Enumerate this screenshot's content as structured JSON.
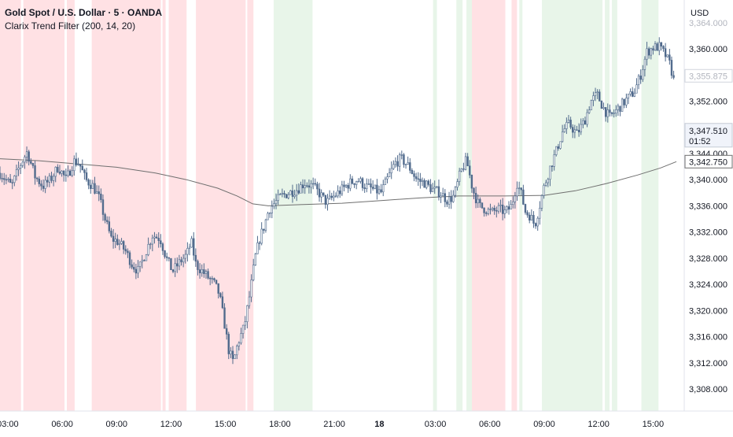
{
  "header": {
    "symbol_title": "Gold Spot / U.S. Dollar · 5 · OANDA",
    "indicator_label": "Clarix Trend Filter (200, 14, 20)"
  },
  "colors": {
    "bull_zone": "#e8f5e9",
    "bear_zone": "#ffe1e4",
    "candle": "#506a8c",
    "ma_line": "#6f6f6f",
    "axis_text": "#131722"
  },
  "chart_data": {
    "type": "candlestick",
    "title": "Gold Spot / U.S. Dollar · 5 · OANDA",
    "indicator": "Clarix Trend Filter (200, 14, 20)",
    "currency_label": "USD",
    "y_range": [
      3304.5,
      3366
    ],
    "y_ticks": [
      {
        "value": 3308,
        "label": "3,308.000"
      },
      {
        "value": 3312,
        "label": "3,312.000"
      },
      {
        "value": 3316,
        "label": "3,316.000"
      },
      {
        "value": 3320,
        "label": "3,320.000"
      },
      {
        "value": 3324,
        "label": "3,324.000"
      },
      {
        "value": 3328,
        "label": "3,328.000"
      },
      {
        "value": 3332,
        "label": "3,332.000"
      },
      {
        "value": 3336,
        "label": "3,336.000"
      },
      {
        "value": 3340,
        "label": "3,340.000"
      },
      {
        "value": 3344,
        "label": "3,344.000"
      },
      {
        "value": 3352,
        "label": "3,352.000"
      },
      {
        "value": 3360,
        "label": "3,360.000"
      }
    ],
    "y_ticks_partial": [
      {
        "value": 3364,
        "label": "3,364.000"
      }
    ],
    "x_range": [
      -10,
      860
    ],
    "x_ticks": [
      {
        "x": 0,
        "label": "03:00",
        "bold": false
      },
      {
        "x": 70,
        "label": "06:00",
        "bold": false
      },
      {
        "x": 140,
        "label": "09:00",
        "bold": false
      },
      {
        "x": 210,
        "label": "12:00",
        "bold": false
      },
      {
        "x": 280,
        "label": "15:00",
        "bold": false
      },
      {
        "x": 350,
        "label": "18:00",
        "bold": false
      },
      {
        "x": 420,
        "label": "21:00",
        "bold": false
      },
      {
        "x": 478,
        "label": "18",
        "bold": true
      },
      {
        "x": 550,
        "label": "03:00",
        "bold": false
      },
      {
        "x": 620,
        "label": "06:00",
        "bold": false
      },
      {
        "x": 690,
        "label": "09:00",
        "bold": false
      },
      {
        "x": 760,
        "label": "12:00",
        "bold": false
      },
      {
        "x": 830,
        "label": "15:00",
        "bold": false
      }
    ],
    "price_labels": [
      {
        "value": 3355.875,
        "label": "3,355.875",
        "style": "ghost"
      },
      {
        "value": 3347.51,
        "label": "3,347.510",
        "sub": "01:52",
        "style": "current"
      },
      {
        "value": 3342.75,
        "label": "3,342.750",
        "style": "ma"
      }
    ],
    "zones": [
      {
        "from": -10,
        "to": 17,
        "trend": "bear"
      },
      {
        "from": 20,
        "to": 73,
        "trend": "bear"
      },
      {
        "from": 76,
        "to": 86,
        "trend": "bear"
      },
      {
        "from": 108,
        "to": 197,
        "trend": "bear"
      },
      {
        "from": 199,
        "to": 203,
        "trend": "bear"
      },
      {
        "from": 207,
        "to": 230,
        "trend": "bear"
      },
      {
        "from": 242,
        "to": 306,
        "trend": "bear"
      },
      {
        "from": 308,
        "to": 316,
        "trend": "bear"
      },
      {
        "from": 342,
        "to": 392,
        "trend": "bull"
      },
      {
        "from": 547,
        "to": 552,
        "trend": "bull"
      },
      {
        "from": 577,
        "to": 585,
        "trend": "bull"
      },
      {
        "from": 590,
        "to": 597,
        "trend": "bull"
      },
      {
        "from": 597,
        "to": 640,
        "trend": "bear"
      },
      {
        "from": 648,
        "to": 655,
        "trend": "bear"
      },
      {
        "from": 658,
        "to": 662,
        "trend": "bull"
      },
      {
        "from": 687,
        "to": 765,
        "trend": "bull"
      },
      {
        "from": 768,
        "to": 774,
        "trend": "bull"
      },
      {
        "from": 777,
        "to": 784,
        "trend": "bull"
      },
      {
        "from": 815,
        "to": 837,
        "trend": "bull"
      }
    ],
    "ma_line": [
      {
        "x": -10,
        "y": 3343.2
      },
      {
        "x": 40,
        "y": 3342.9
      },
      {
        "x": 90,
        "y": 3342.4
      },
      {
        "x": 140,
        "y": 3341.9
      },
      {
        "x": 190,
        "y": 3341.0
      },
      {
        "x": 230,
        "y": 3340.0
      },
      {
        "x": 270,
        "y": 3338.7
      },
      {
        "x": 295,
        "y": 3337.5
      },
      {
        "x": 315,
        "y": 3336.3
      },
      {
        "x": 335,
        "y": 3336.0
      },
      {
        "x": 380,
        "y": 3336.2
      },
      {
        "x": 430,
        "y": 3336.4
      },
      {
        "x": 480,
        "y": 3336.8
      },
      {
        "x": 530,
        "y": 3337.2
      },
      {
        "x": 580,
        "y": 3337.5
      },
      {
        "x": 640,
        "y": 3337.5
      },
      {
        "x": 690,
        "y": 3337.6
      },
      {
        "x": 730,
        "y": 3338.3
      },
      {
        "x": 770,
        "y": 3339.4
      },
      {
        "x": 810,
        "y": 3340.7
      },
      {
        "x": 840,
        "y": 3341.8
      },
      {
        "x": 860,
        "y": 3342.75
      }
    ],
    "price_path": [
      {
        "x": -10,
        "y": 3341.0
      },
      {
        "x": 5,
        "y": 3339.0
      },
      {
        "x": 15,
        "y": 3342.0
      },
      {
        "x": 25,
        "y": 3344.3
      },
      {
        "x": 35,
        "y": 3340.5
      },
      {
        "x": 45,
        "y": 3339.0
      },
      {
        "x": 55,
        "y": 3340.0
      },
      {
        "x": 65,
        "y": 3342.0
      },
      {
        "x": 75,
        "y": 3340.0
      },
      {
        "x": 85,
        "y": 3342.8
      },
      {
        "x": 92,
        "y": 3342.5
      },
      {
        "x": 100,
        "y": 3340.0
      },
      {
        "x": 110,
        "y": 3339.0
      },
      {
        "x": 118,
        "y": 3337.0
      },
      {
        "x": 125,
        "y": 3334.0
      },
      {
        "x": 133,
        "y": 3331.0
      },
      {
        "x": 142,
        "y": 3330.5
      },
      {
        "x": 152,
        "y": 3329.0
      },
      {
        "x": 160,
        "y": 3327.0
      },
      {
        "x": 168,
        "y": 3326.0
      },
      {
        "x": 176,
        "y": 3328.5
      },
      {
        "x": 186,
        "y": 3331.5
      },
      {
        "x": 196,
        "y": 3331.0
      },
      {
        "x": 204,
        "y": 3328.0
      },
      {
        "x": 212,
        "y": 3326.0
      },
      {
        "x": 222,
        "y": 3327.5
      },
      {
        "x": 230,
        "y": 3328.5
      },
      {
        "x": 236,
        "y": 3330.5
      },
      {
        "x": 242,
        "y": 3327.0
      },
      {
        "x": 250,
        "y": 3326.0
      },
      {
        "x": 258,
        "y": 3325.0
      },
      {
        "x": 266,
        "y": 3324.0
      },
      {
        "x": 272,
        "y": 3322.5
      },
      {
        "x": 278,
        "y": 3318.5
      },
      {
        "x": 284,
        "y": 3314.0
      },
      {
        "x": 290,
        "y": 3312.0
      },
      {
        "x": 296,
        "y": 3315.0
      },
      {
        "x": 304,
        "y": 3317.5
      },
      {
        "x": 312,
        "y": 3323.0
      },
      {
        "x": 318,
        "y": 3328.0
      },
      {
        "x": 324,
        "y": 3331.0
      },
      {
        "x": 330,
        "y": 3333.0
      },
      {
        "x": 336,
        "y": 3335.5
      },
      {
        "x": 344,
        "y": 3336.5
      },
      {
        "x": 352,
        "y": 3337.5
      },
      {
        "x": 362,
        "y": 3338.0
      },
      {
        "x": 372,
        "y": 3338.5
      },
      {
        "x": 382,
        "y": 3339.5
      },
      {
        "x": 392,
        "y": 3339.0
      },
      {
        "x": 400,
        "y": 3338.0
      },
      {
        "x": 410,
        "y": 3336.5
      },
      {
        "x": 420,
        "y": 3337.5
      },
      {
        "x": 430,
        "y": 3338.5
      },
      {
        "x": 440,
        "y": 3339.5
      },
      {
        "x": 450,
        "y": 3340.0
      },
      {
        "x": 460,
        "y": 3339.0
      },
      {
        "x": 470,
        "y": 3338.5
      },
      {
        "x": 480,
        "y": 3338.0
      },
      {
        "x": 490,
        "y": 3340.5
      },
      {
        "x": 498,
        "y": 3342.5
      },
      {
        "x": 506,
        "y": 3343.2
      },
      {
        "x": 516,
        "y": 3342.0
      },
      {
        "x": 526,
        "y": 3340.0
      },
      {
        "x": 536,
        "y": 3339.5
      },
      {
        "x": 546,
        "y": 3338.5
      },
      {
        "x": 556,
        "y": 3338.0
      },
      {
        "x": 566,
        "y": 3336.8
      },
      {
        "x": 574,
        "y": 3337.5
      },
      {
        "x": 582,
        "y": 3341.0
      },
      {
        "x": 590,
        "y": 3343.0
      },
      {
        "x": 598,
        "y": 3338.5
      },
      {
        "x": 606,
        "y": 3336.0
      },
      {
        "x": 614,
        "y": 3335.5
      },
      {
        "x": 622,
        "y": 3335.0
      },
      {
        "x": 632,
        "y": 3335.5
      },
      {
        "x": 640,
        "y": 3335.0
      },
      {
        "x": 648,
        "y": 3336.0
      },
      {
        "x": 655,
        "y": 3339.5
      },
      {
        "x": 660,
        "y": 3338.0
      },
      {
        "x": 666,
        "y": 3335.0
      },
      {
        "x": 672,
        "y": 3334.5
      },
      {
        "x": 678,
        "y": 3333.0
      },
      {
        "x": 684,
        "y": 3336.0
      },
      {
        "x": 690,
        "y": 3339.0
      },
      {
        "x": 698,
        "y": 3342.0
      },
      {
        "x": 706,
        "y": 3344.5
      },
      {
        "x": 714,
        "y": 3347.5
      },
      {
        "x": 722,
        "y": 3348.5
      },
      {
        "x": 732,
        "y": 3347.0
      },
      {
        "x": 742,
        "y": 3349.0
      },
      {
        "x": 750,
        "y": 3352.0
      },
      {
        "x": 758,
        "y": 3353.0
      },
      {
        "x": 766,
        "y": 3351.0
      },
      {
        "x": 774,
        "y": 3349.5
      },
      {
        "x": 782,
        "y": 3350.5
      },
      {
        "x": 790,
        "y": 3351.5
      },
      {
        "x": 798,
        "y": 3352.5
      },
      {
        "x": 806,
        "y": 3353.5
      },
      {
        "x": 814,
        "y": 3356.0
      },
      {
        "x": 822,
        "y": 3359.5
      },
      {
        "x": 830,
        "y": 3360.2
      },
      {
        "x": 838,
        "y": 3360.3
      },
      {
        "x": 846,
        "y": 3359.0
      },
      {
        "x": 852,
        "y": 3357.5
      },
      {
        "x": 858,
        "y": 3354.5
      }
    ]
  }
}
